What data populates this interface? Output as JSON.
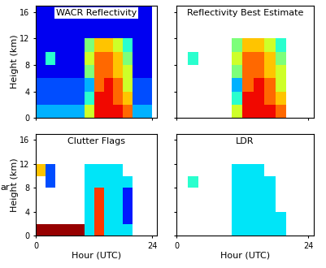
{
  "side_text": "ar",
  "chart_data": [
    {
      "type": "heatmap",
      "title": "WACR Reflectivity",
      "y_label": "Height (km)",
      "x_label": null,
      "color": "jet",
      "clim": [
        0,
        10
      ],
      "x_edges": [
        0,
        2,
        4,
        6,
        8,
        10,
        12,
        14,
        16,
        18,
        20,
        22,
        24
      ],
      "y_edges": [
        0,
        2,
        4,
        6,
        8,
        10,
        12,
        14,
        16,
        17
      ],
      "xlim": [
        0,
        25
      ],
      "ylim": [
        0,
        17
      ],
      "xticks": [
        0,
        24
      ],
      "yticks": [
        0,
        4,
        8,
        12,
        16
      ],
      "tick_labels": "y",
      "cells": [
        [
          3,
          3,
          3,
          3,
          3,
          6,
          9,
          9,
          9,
          8,
          3,
          3
        ],
        [
          2,
          2,
          2,
          2,
          2,
          4,
          9,
          9,
          8,
          7,
          2,
          2
        ],
        [
          2,
          2,
          2,
          2,
          2,
          3,
          8,
          9,
          8,
          6,
          2,
          2
        ],
        [
          1,
          1,
          1,
          1,
          1,
          5,
          8,
          8,
          7,
          6,
          1,
          1
        ],
        [
          1,
          4,
          1,
          1,
          1,
          6,
          8,
          8,
          7,
          5,
          1,
          1
        ],
        [
          1,
          1,
          1,
          1,
          1,
          5,
          7,
          7,
          6,
          4,
          1,
          1
        ],
        [
          1,
          1,
          1,
          1,
          1,
          1,
          1,
          1,
          1,
          1,
          1,
          1
        ],
        [
          1,
          1,
          1,
          1,
          1,
          1,
          1,
          1,
          1,
          1,
          1,
          1
        ],
        [
          1,
          1,
          1,
          1,
          1,
          1,
          1,
          1,
          1,
          1,
          1,
          1
        ]
      ]
    },
    {
      "type": "heatmap",
      "title": "Reflectivity Best Estimate",
      "y_label": null,
      "x_label": null,
      "color": "jet",
      "clim": [
        0,
        10
      ],
      "x_edges": [
        0,
        2,
        4,
        6,
        8,
        10,
        12,
        14,
        16,
        18,
        20,
        22,
        24
      ],
      "y_edges": [
        0,
        2,
        4,
        6,
        8,
        10,
        12,
        14,
        16,
        17
      ],
      "xlim": [
        0,
        25
      ],
      "ylim": [
        0,
        17
      ],
      "xticks": [
        0,
        24
      ],
      "yticks": [
        0,
        4,
        8,
        12,
        16
      ],
      "tick_labels": false,
      "cells": [
        [
          null,
          null,
          null,
          null,
          null,
          6,
          9,
          9,
          9,
          8,
          null,
          null
        ],
        [
          null,
          null,
          null,
          null,
          null,
          4,
          9,
          9,
          8,
          7,
          null,
          null
        ],
        [
          null,
          null,
          null,
          null,
          null,
          3,
          8,
          9,
          8,
          6,
          null,
          null
        ],
        [
          null,
          null,
          null,
          null,
          null,
          5,
          8,
          8,
          7,
          6,
          null,
          null
        ],
        [
          null,
          4,
          null,
          null,
          null,
          6,
          8,
          8,
          7,
          5,
          null,
          null
        ],
        [
          null,
          null,
          null,
          null,
          null,
          5,
          7,
          7,
          6,
          4,
          null,
          null
        ],
        [
          null,
          null,
          null,
          null,
          null,
          null,
          null,
          null,
          null,
          null,
          null,
          null
        ],
        [
          null,
          null,
          null,
          null,
          null,
          null,
          null,
          null,
          null,
          null,
          null,
          null
        ],
        [
          null,
          null,
          null,
          null,
          null,
          null,
          null,
          null,
          null,
          null,
          null,
          null
        ]
      ]
    },
    {
      "type": "heatmap",
      "title": "Clutter Flags",
      "y_label": "Height (km)",
      "x_label": "Hour (UTC)",
      "color": "jet",
      "clim": [
        0,
        10
      ],
      "x_edges": [
        0,
        2,
        4,
        6,
        8,
        10,
        12,
        14,
        16,
        18,
        20,
        22,
        24
      ],
      "y_edges": [
        0,
        2,
        4,
        6,
        8,
        10,
        12,
        14,
        16,
        17
      ],
      "xlim": [
        0,
        25
      ],
      "ylim": [
        0,
        17
      ],
      "xticks": [
        0,
        24
      ],
      "yticks": [
        0,
        4,
        8,
        12,
        16
      ],
      "tick_labels": true,
      "cells": [
        [
          9.8,
          9.8,
          9.8,
          9.8,
          9.8,
          3.5,
          8.5,
          3.5,
          3.5,
          3.5,
          null,
          null
        ],
        [
          null,
          null,
          null,
          null,
          null,
          3.5,
          8.5,
          3.5,
          3.5,
          1.5,
          null,
          null
        ],
        [
          null,
          null,
          null,
          null,
          null,
          3.5,
          8.5,
          3.5,
          3.5,
          1.5,
          null,
          null
        ],
        [
          null,
          null,
          null,
          null,
          null,
          3.5,
          8.5,
          3.5,
          3.5,
          1.5,
          null,
          null
        ],
        [
          null,
          2,
          null,
          null,
          null,
          3.5,
          3.5,
          3.5,
          3.5,
          3.5,
          null,
          null
        ],
        [
          7,
          2,
          null,
          null,
          null,
          3.5,
          3.5,
          3.5,
          3.5,
          null,
          null,
          null
        ],
        [
          null,
          null,
          null,
          null,
          null,
          null,
          null,
          null,
          null,
          null,
          null,
          null
        ],
        [
          null,
          null,
          null,
          null,
          null,
          null,
          null,
          null,
          null,
          null,
          null,
          null
        ],
        [
          null,
          null,
          null,
          null,
          null,
          null,
          null,
          null,
          null,
          null,
          null,
          null
        ]
      ]
    },
    {
      "type": "heatmap",
      "title": "LDR",
      "y_label": null,
      "x_label": "Hour (UTC)",
      "color": "jet",
      "clim": [
        0,
        10
      ],
      "x_edges": [
        0,
        2,
        4,
        6,
        8,
        10,
        12,
        14,
        16,
        18,
        20,
        22,
        24
      ],
      "y_edges": [
        0,
        2,
        4,
        6,
        8,
        10,
        12,
        14,
        16,
        17
      ],
      "xlim": [
        0,
        25
      ],
      "ylim": [
        0,
        17
      ],
      "xticks": [
        0,
        24
      ],
      "yticks": [
        0,
        4,
        8,
        12,
        16
      ],
      "tick_labels": "x",
      "cells": [
        [
          null,
          null,
          null,
          null,
          null,
          3.5,
          3.5,
          3.5,
          3.5,
          3.5,
          null,
          null
        ],
        [
          null,
          null,
          null,
          null,
          null,
          3.5,
          3.5,
          3.5,
          3.5,
          3.5,
          null,
          null
        ],
        [
          null,
          null,
          null,
          null,
          null,
          3.5,
          3.5,
          3.5,
          3.5,
          null,
          null,
          null
        ],
        [
          null,
          null,
          null,
          null,
          null,
          3.5,
          3.5,
          3.5,
          3.5,
          null,
          null,
          null
        ],
        [
          null,
          4,
          null,
          null,
          null,
          3.5,
          3.5,
          3.5,
          3.5,
          null,
          null,
          null
        ],
        [
          null,
          null,
          null,
          null,
          null,
          3.5,
          3.5,
          3.5,
          null,
          null,
          null,
          null
        ],
        [
          null,
          null,
          null,
          null,
          null,
          null,
          null,
          null,
          null,
          null,
          null,
          null
        ],
        [
          null,
          null,
          null,
          null,
          null,
          null,
          null,
          null,
          null,
          null,
          null,
          null
        ],
        [
          null,
          null,
          null,
          null,
          null,
          null,
          null,
          null,
          null,
          null,
          null,
          null
        ]
      ]
    }
  ]
}
